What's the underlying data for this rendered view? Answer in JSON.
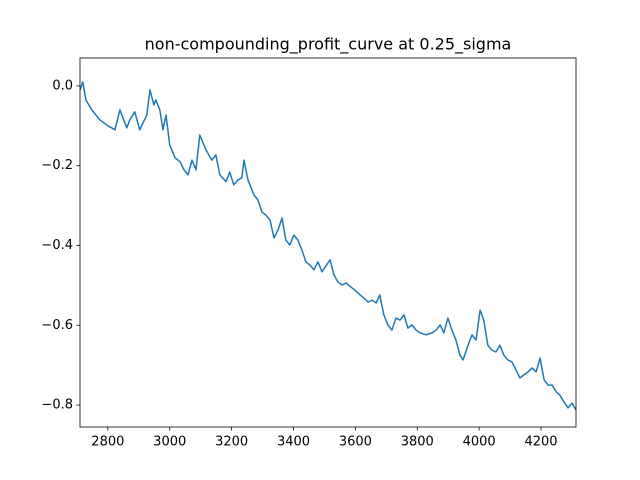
{
  "chart_data": {
    "type": "line",
    "title": "non-compounding_profit_curve at 0.25_sigma",
    "x": [
      2710,
      2719,
      2729,
      2748,
      2774,
      2800,
      2823,
      2839,
      2861,
      2871,
      2887,
      2903,
      2926,
      2936,
      2949,
      2955,
      2968,
      2978,
      2988,
      3000,
      3017,
      3033,
      3046,
      3059,
      3072,
      3085,
      3097,
      3117,
      3136,
      3149,
      3162,
      3182,
      3194,
      3207,
      3220,
      3233,
      3240,
      3253,
      3272,
      3285,
      3298,
      3311,
      3324,
      3337,
      3350,
      3363,
      3375,
      3388,
      3401,
      3414,
      3427,
      3440,
      3453,
      3466,
      3479,
      3492,
      3505,
      3518,
      3531,
      3544,
      3557,
      3570,
      3582,
      3599,
      3615,
      3628,
      3641,
      3654,
      3667,
      3679,
      3692,
      3705,
      3718,
      3731,
      3744,
      3757,
      3770,
      3783,
      3796,
      3809,
      3828,
      3848,
      3861,
      3874,
      3886,
      3899,
      3912,
      3925,
      3938,
      3948,
      3964,
      3977,
      3990,
      4003,
      4015,
      4028,
      4041,
      4054,
      4067,
      4080,
      4093,
      4106,
      4119,
      4132,
      4145,
      4158,
      4171,
      4184,
      4197,
      4210,
      4223,
      4236,
      4249,
      4261,
      4274,
      4287,
      4300,
      4313
    ],
    "series": [
      {
        "color": "#1f77b4",
        "values": [
          -0.01,
          0.01,
          -0.035,
          -0.06,
          -0.085,
          -0.1,
          -0.11,
          -0.06,
          -0.105,
          -0.085,
          -0.065,
          -0.11,
          -0.073,
          -0.01,
          -0.048,
          -0.035,
          -0.06,
          -0.11,
          -0.073,
          -0.148,
          -0.18,
          -0.19,
          -0.21,
          -0.223,
          -0.186,
          -0.21,
          -0.123,
          -0.16,
          -0.186,
          -0.173,
          -0.223,
          -0.24,
          -0.216,
          -0.248,
          -0.236,
          -0.23,
          -0.186,
          -0.236,
          -0.273,
          -0.286,
          -0.316,
          -0.324,
          -0.336,
          -0.381,
          -0.361,
          -0.331,
          -0.386,
          -0.399,
          -0.374,
          -0.386,
          -0.411,
          -0.441,
          -0.449,
          -0.461,
          -0.441,
          -0.466,
          -0.451,
          -0.436,
          -0.474,
          -0.492,
          -0.499,
          -0.494,
          -0.502,
          -0.512,
          -0.524,
          -0.532,
          -0.542,
          -0.537,
          -0.544,
          -0.524,
          -0.574,
          -0.599,
          -0.612,
          -0.582,
          -0.587,
          -0.574,
          -0.607,
          -0.599,
          -0.612,
          -0.619,
          -0.624,
          -0.619,
          -0.612,
          -0.599,
          -0.619,
          -0.582,
          -0.612,
          -0.637,
          -0.675,
          -0.687,
          -0.65,
          -0.624,
          -0.637,
          -0.562,
          -0.587,
          -0.65,
          -0.662,
          -0.667,
          -0.65,
          -0.675,
          -0.687,
          -0.692,
          -0.712,
          -0.732,
          -0.724,
          -0.717,
          -0.707,
          -0.717,
          -0.682,
          -0.737,
          -0.75,
          -0.75,
          -0.767,
          -0.775,
          -0.792,
          -0.807,
          -0.795,
          -0.812
        ]
      }
    ],
    "xlim": [
      2710,
      4313
    ],
    "xticks": [
      2800,
      3000,
      3200,
      3400,
      3600,
      3800,
      4000,
      4200
    ],
    "ylim": [
      -0.855,
      0.07
    ],
    "yticks": [
      {
        "value": 0,
        "label": "0.0"
      },
      {
        "value": -0.2,
        "label": "−0.2"
      },
      {
        "value": -0.4,
        "label": "−0.4"
      },
      {
        "value": -0.6,
        "label": "−0.6"
      },
      {
        "value": -0.8,
        "label": "−0.8"
      }
    ],
    "grid": false
  }
}
